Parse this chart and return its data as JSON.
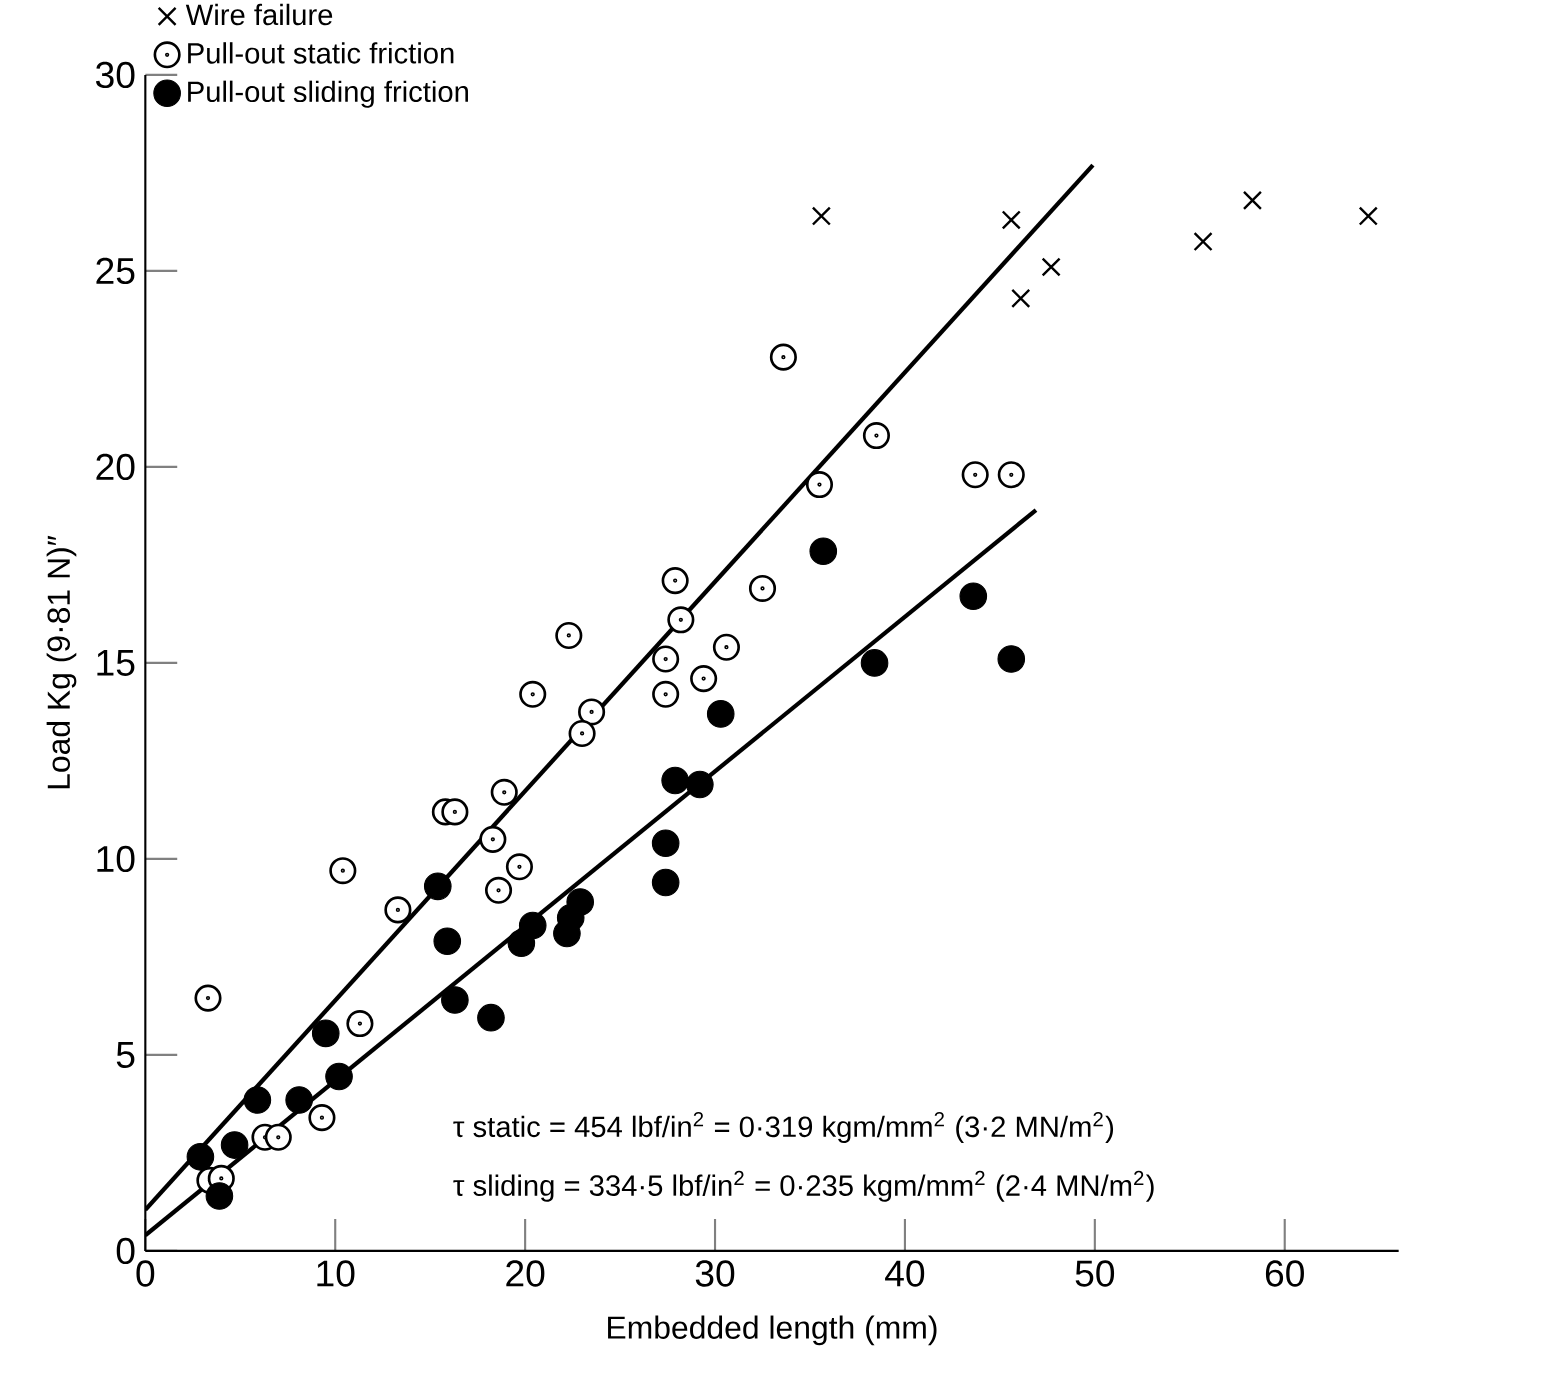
{
  "chart_data": {
    "type": "scatter",
    "xlabel": "Embedded length (mm)",
    "ylabel": "Load Kg (9·81 N)″",
    "xlim": [
      0,
      66
    ],
    "ylim": [
      0,
      30
    ],
    "xticks": [
      0,
      10,
      20,
      30,
      40,
      50,
      60
    ],
    "yticks": [
      0,
      5,
      10,
      15,
      20,
      25,
      30
    ],
    "grid": false,
    "legend": "top left",
    "series": [
      {
        "name": "Wire failure",
        "marker": "cross",
        "color": "#000000",
        "x": [
          35.6,
          45.6,
          47.7,
          46.1,
          55.7,
          58.3,
          64.4
        ],
        "values": [
          26.4,
          26.3,
          25.1,
          24.3,
          25.75,
          26.8,
          26.4
        ]
      },
      {
        "name": "Pull-out static friction",
        "marker": "circle",
        "color": "#000000",
        "x": [
          33.6,
          27.9,
          28.2,
          22.3,
          32.5,
          27.4,
          30.6,
          29.4,
          27.4,
          20.4,
          23.5,
          23.0,
          18.9,
          15.8,
          16.3,
          18.3,
          10.4,
          19.7,
          18.6,
          13.3,
          3.3,
          11.3,
          9.3,
          6.3,
          7.0,
          3.4,
          4.0,
          38.5,
          35.5,
          43.7,
          45.6
        ],
        "values": [
          22.8,
          17.1,
          16.1,
          15.7,
          16.9,
          15.1,
          15.4,
          14.6,
          14.2,
          14.2,
          13.75,
          13.2,
          11.7,
          11.2,
          11.2,
          10.5,
          9.7,
          9.8,
          9.2,
          8.7,
          6.45,
          5.8,
          3.4,
          2.9,
          2.9,
          1.8,
          1.85,
          20.8,
          19.55,
          19.8,
          19.8
        ]
      },
      {
        "name": "Pull-out sliding friction",
        "marker": "circle",
        "color": "#000000",
        "x": [
          30.3,
          27.9,
          29.2,
          15.4,
          15.9,
          16.3,
          18.2,
          19.8,
          20.4,
          22.2,
          22.4,
          22.9,
          27.4,
          27.4,
          9.5,
          10.2,
          5.9,
          8.1,
          4.7,
          2.9,
          3.9,
          35.7,
          43.6,
          45.6,
          38.4
        ],
        "values": [
          13.7,
          12.0,
          11.9,
          9.3,
          7.9,
          6.4,
          5.95,
          7.85,
          8.3,
          8.1,
          8.5,
          8.9,
          10.4,
          9.4,
          5.55,
          4.45,
          3.85,
          3.85,
          2.7,
          2.4,
          1.4,
          17.85,
          16.7,
          15.1,
          15.0
        ]
      },
      {
        "type": "line",
        "color": "#000000",
        "x": [
          0,
          49.9
        ],
        "values": [
          1.05,
          27.7
        ]
      },
      {
        "type": "line",
        "color": "#000000",
        "x": [
          0,
          46.9
        ],
        "values": [
          0.4,
          18.9
        ]
      }
    ],
    "annotations": [
      "τ static = 454 lbf/in$^{2}$ = 0·319 kgm/mm$^{2}$ (3·2 MN/m$^{2}$)",
      "τ sliding = 334·5 lbf/in$^{2}$ = 0·235 kgm/mm$^{2}$ (2·4 MN/m$^{2}$)"
    ]
  }
}
